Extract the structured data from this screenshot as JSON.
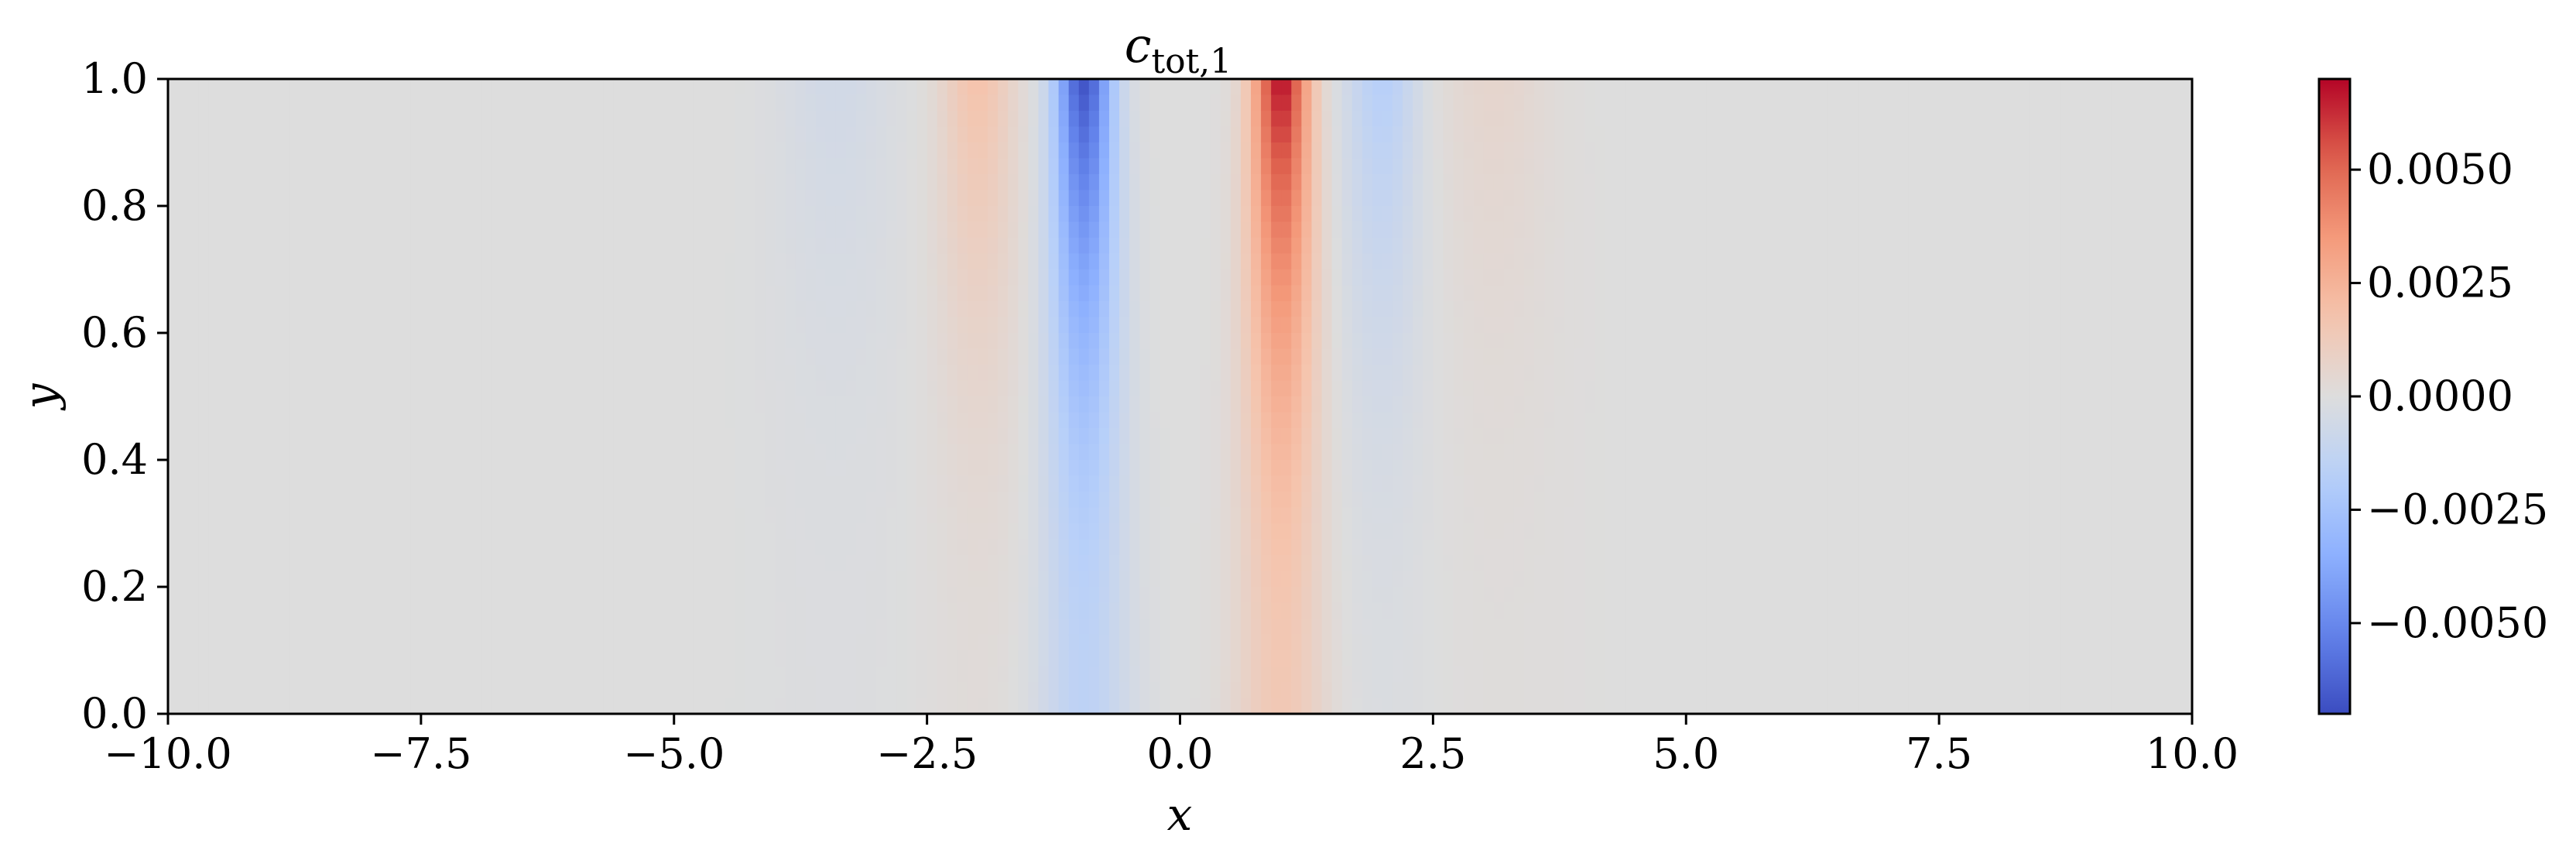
{
  "chart_data": {
    "type": "heatmap",
    "title_main": "c",
    "title_sub": "tot,1",
    "xlabel": "x",
    "ylabel": "y",
    "xlim": [
      -10.0,
      10.0
    ],
    "ylim": [
      0.0,
      1.0
    ],
    "x_ticks": [
      "−10.0",
      "−7.5",
      "−5.0",
      "−2.5",
      "0.0",
      "2.5",
      "5.0",
      "7.5",
      "10.0"
    ],
    "x_tick_values": [
      -10.0,
      -7.5,
      -5.0,
      -2.5,
      0.0,
      2.5,
      5.0,
      7.5,
      10.0
    ],
    "y_ticks": [
      "0.0",
      "0.2",
      "0.4",
      "0.6",
      "0.8",
      "1.0"
    ],
    "y_tick_values": [
      0.0,
      0.2,
      0.4,
      0.6,
      0.8,
      1.0
    ],
    "colorbar": {
      "colormap": "coolwarm",
      "vmin": -0.007,
      "vmax": 0.007,
      "ticks": [
        "−0.0050",
        "−0.0025",
        "0.0000",
        "0.0025",
        "0.0050"
      ],
      "tick_values": [
        -0.005,
        -0.0025,
        0.0,
        0.0025,
        0.005
      ]
    },
    "field_profile": {
      "x": [
        -3.4,
        -2.0,
        -0.95,
        0.0,
        1.0,
        2.0,
        3.1
      ],
      "value_at_y1": [
        -0.0006,
        0.0018,
        -0.0068,
        0.0,
        0.0068,
        -0.0018,
        0.0006
      ],
      "value_at_y0": [
        -0.0001,
        0.0002,
        -0.0015,
        0.0,
        0.0015,
        -0.0002,
        0.0001
      ]
    }
  }
}
